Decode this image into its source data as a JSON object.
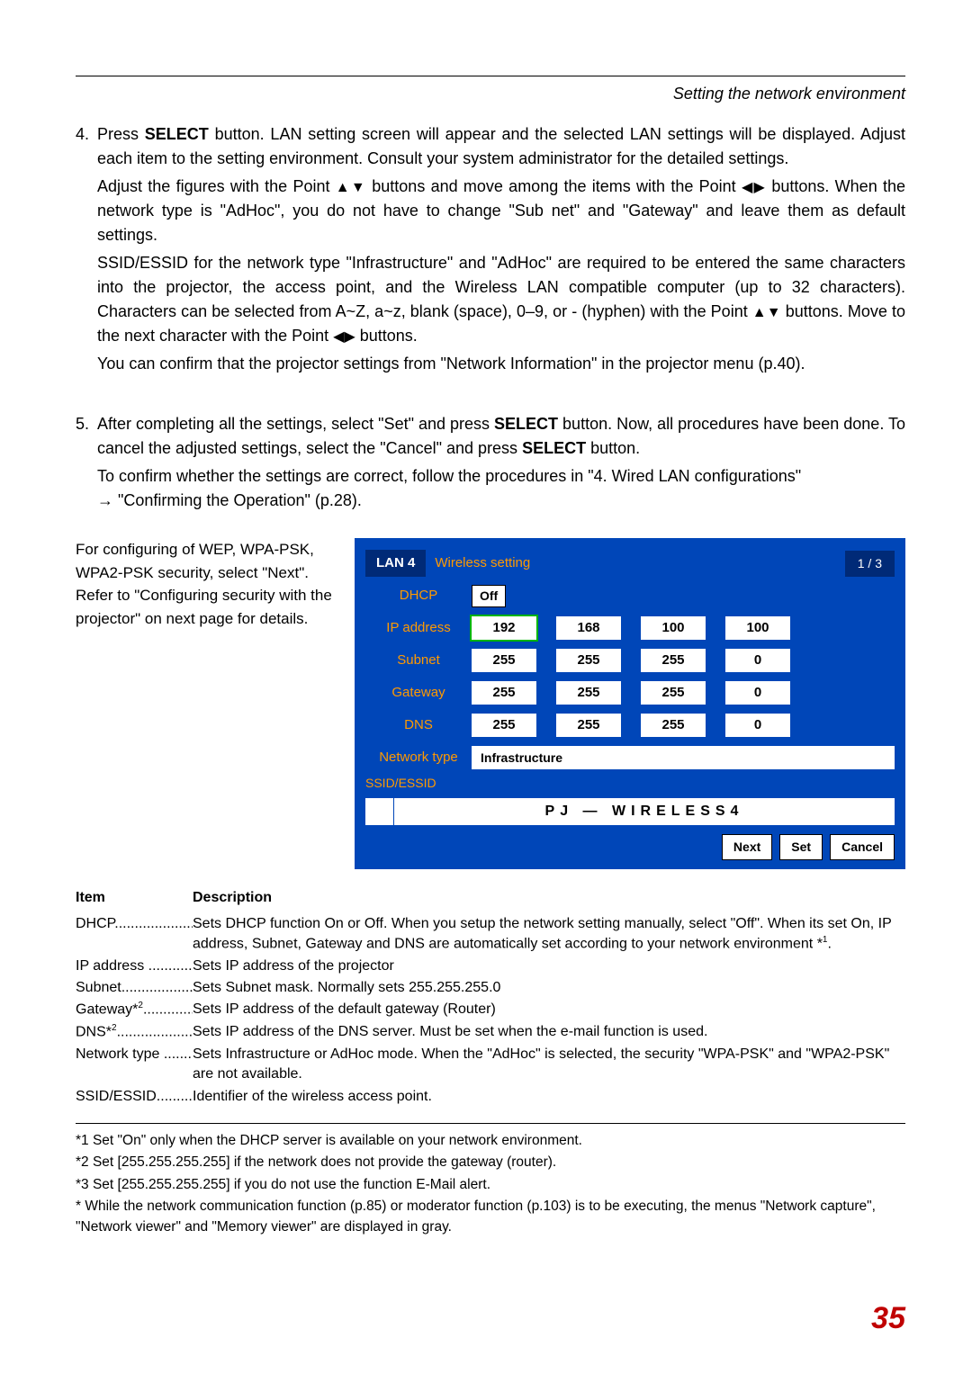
{
  "header": {
    "section": "Setting  the network environment"
  },
  "steps": {
    "s4": {
      "num": "4.",
      "p1a": "Press ",
      "p1b": "SELECT",
      "p1c": " button. LAN setting screen will appear and the selected LAN settings will be displayed. Adjust each item to the setting environment. Consult your system administrator for the detailed settings.",
      "p2a": "Adjust the figures with the Point ",
      "p2b": " buttons and move among the items with the Point ",
      "p2c": " buttons. When the network type is \"AdHoc\", you do not have to change \"Sub net\" and \"Gateway\" and leave them as default settings.",
      "p3": "SSID/ESSID for the network type \"Infrastructure\" and \"AdHoc\" are required to be entered the same characters into the projector, the access point, and the Wireless LAN compatible computer (up to 32 characters). Characters can be selected from A~Z, a~z, blank (space), 0–9, or - (hyphen) with the Point ",
      "p3b": " buttons. Move to the next character with the Point ",
      "p3c": " buttons.",
      "p4": "You can confirm that the projector settings from \"Network Information\" in the projector menu (p.40)."
    },
    "s5": {
      "num": "5.",
      "p1a": "After completing all the settings, select \"Set\" and press ",
      "p1b": "SELECT",
      "p1c": " button. Now, all procedures have been done. To cancel the adjusted settings, select the \"Cancel\" and press ",
      "p1d": "SELECT",
      "p1e": " button.",
      "p2": "To confirm whether the settings are correct, follow the procedures in \"4. Wired LAN configurations\" ",
      "p2arrow": "→",
      "p2b": " \"Confirming the Operation\" (p.28)."
    }
  },
  "config_note": "For configuring of WEP, WPA-PSK, WPA2-PSK security, select \"Next\". Refer to  \"Configuring security with the projector\" on next page for details.",
  "panel": {
    "title": "LAN 4",
    "subtitle": "Wireless setting",
    "page": "1 / 3",
    "rows": {
      "dhcp": {
        "label": "DHCP",
        "value": "Off"
      },
      "ip": {
        "label": "IP address",
        "v": [
          "192",
          "168",
          "100",
          "100"
        ]
      },
      "sub": {
        "label": "Subnet",
        "v": [
          "255",
          "255",
          "255",
          "0"
        ]
      },
      "gw": {
        "label": "Gateway",
        "v": [
          "255",
          "255",
          "255",
          "0"
        ]
      },
      "dns": {
        "label": "DNS",
        "v": [
          "255",
          "255",
          "255",
          "0"
        ]
      },
      "nt": {
        "label": "Network type",
        "value": "Infrastructure"
      },
      "ssid": {
        "label": "SSID/ESSID",
        "value": "PJ — WIRELESS4"
      }
    },
    "buttons": {
      "next": "Next",
      "set": "Set",
      "cancel": "Cancel"
    }
  },
  "desc": {
    "h1": "Item",
    "h2": "Description",
    "rows": [
      {
        "term": "DHCP...........................",
        "def": "Sets DHCP function On or Off. When you setup the network setting manually, select \"Off\". When its set On, IP address, Subnet, Gateway and DNS are automatically set according to your network environment *",
        "sup": "1",
        "tail": "."
      },
      {
        "term": "IP address ..................",
        "def": "Sets IP address of the projector"
      },
      {
        "term": "Subnet........................",
        "def": "Sets Subnet mask. Normally sets 255.255.255.0"
      },
      {
        "term": "Gateway*",
        "sup_t": "2",
        "term2": "..................",
        "def": "Sets IP address of the default gateway (Router)"
      },
      {
        "term": "DNS*",
        "sup_t": "2",
        "term2": "...........................",
        "def": "Sets IP address of the DNS server. Must be set when the e-mail function is used."
      },
      {
        "term": "Network type ..........",
        "def": "Sets Infrastructure or AdHoc mode. When the \"AdHoc\" is selected, the security \"WPA-PSK\" and \"WPA2-PSK\" are not available."
      },
      {
        "term": "SSID/ESSID...................",
        "def": "Identifier of the wireless access point."
      }
    ]
  },
  "footnotes": {
    "f1": "*1 Set \"On\" only when the DHCP server is available on your network environment.",
    "f2": "*2 Set [255.255.255.255] if the network does not provide the gateway (router).",
    "f3": "*3 Set [255.255.255.255] if you do not use the function E-Mail alert.",
    "f4": "*  While the network communication function (p.85) or moderator function (p.103) is to be executing, the menus \"Network capture\", \"Network viewer\" and \"Memory viewer\" are displayed in gray."
  },
  "pagenum": "35",
  "glyphs": {
    "ud": "▲▼",
    "lr": "◀▶"
  }
}
